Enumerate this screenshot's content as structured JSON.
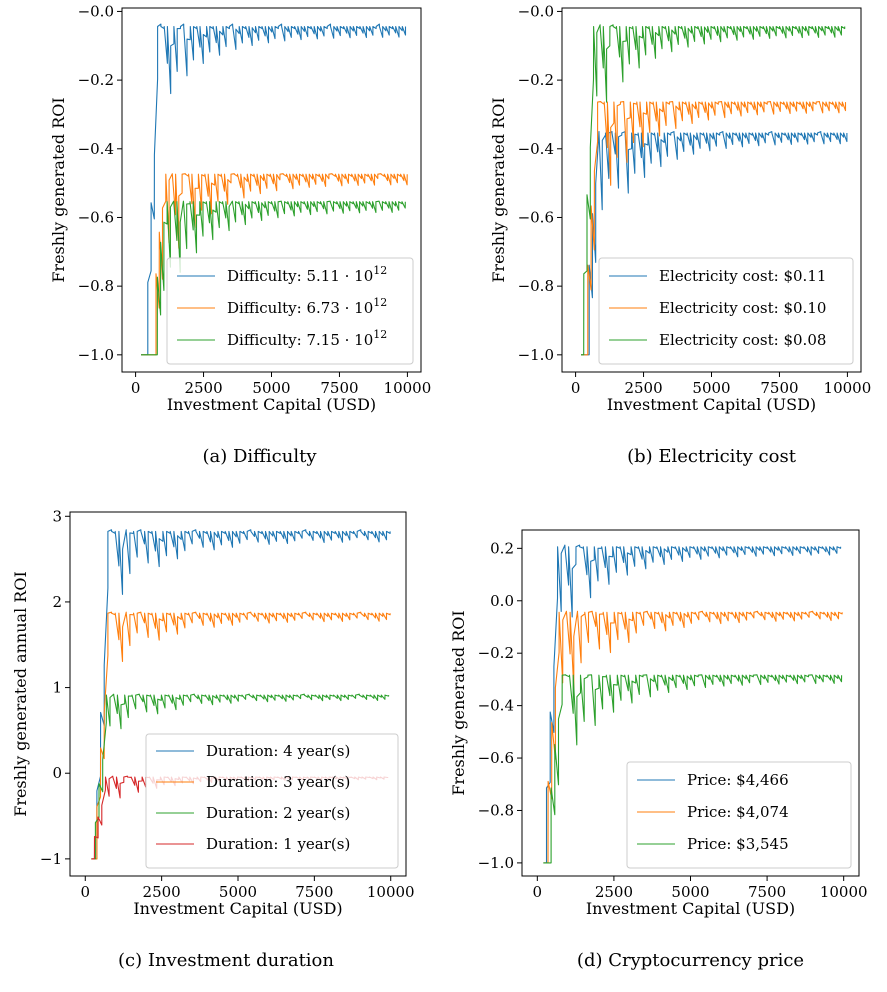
{
  "chart_data": [
    {
      "type": "line",
      "caption": "(a) Difficulty",
      "xlabel": "Investment Capital (USD)",
      "ylabel": "Freshly generated ROI",
      "xlim": [
        -500,
        10500
      ],
      "ylim": [
        -1.05,
        0.01
      ],
      "xticks": [
        0,
        2500,
        5000,
        7500,
        10000
      ],
      "yticks": [
        -1.0,
        -0.8,
        -0.6,
        -0.4,
        -0.2,
        -0.0
      ],
      "ytick_labels": [
        "−1.0",
        "−0.8",
        "−0.6",
        "−0.4",
        "−0.2",
        "−0.0"
      ],
      "legend_position": "lower-right",
      "series": [
        {
          "name": "Difficulty: 5.11 · 10^12",
          "label_base": "Difficulty: 5.11 · 10",
          "label_exp": "12",
          "color": "#1f77b4",
          "start_x": 450,
          "asymptote": -0.05,
          "amplitude": 0.26,
          "dip_depth": 0.35,
          "tooth_depth": 0.03
        },
        {
          "name": "Difficulty: 6.73 · 10^12",
          "label_base": "Difficulty: 6.73 · 10",
          "label_exp": "12",
          "color": "#ff7f0e",
          "start_x": 750,
          "asymptote": -0.48,
          "amplitude": 0.15,
          "dip_depth": 0.4,
          "tooth_depth": 0.03
        },
        {
          "name": "Difficulty: 7.15 · 10^12",
          "label_base": "Difficulty: 7.15 · 10",
          "label_exp": "12",
          "color": "#2ca02c",
          "start_x": 800,
          "asymptote": -0.56,
          "amplitude": 0.15,
          "dip_depth": 0.38,
          "tooth_depth": 0.03
        }
      ]
    },
    {
      "type": "line",
      "caption": "(b) Electricity cost",
      "xlabel": "Investment Capital (USD)",
      "ylabel": "Freshly generated ROI",
      "xlim": [
        -500,
        10500
      ],
      "ylim": [
        -1.05,
        0.01
      ],
      "xticks": [
        0,
        2500,
        5000,
        7500,
        10000
      ],
      "yticks": [
        -1.0,
        -0.8,
        -0.6,
        -0.4,
        -0.2,
        -0.0
      ],
      "ytick_labels": [
        "−1.0",
        "−0.8",
        "−0.6",
        "−0.4",
        "−0.2",
        "−0.0"
      ],
      "legend_position": "lower-right",
      "series": [
        {
          "name": "Electricity cost: $0.11",
          "label_base": "Electricity cost: $0.11",
          "label_exp": "",
          "color": "#1f77b4",
          "start_x": 500,
          "asymptote": -0.36,
          "amplitude": 0.2,
          "dip_depth": 0.45,
          "tooth_depth": 0.03
        },
        {
          "name": "Electricity cost: $0.10",
          "label_base": "Electricity cost: $0.10",
          "label_exp": "",
          "color": "#ff7f0e",
          "start_x": 450,
          "asymptote": -0.27,
          "amplitude": 0.15,
          "dip_depth": 0.45,
          "tooth_depth": 0.03
        },
        {
          "name": "Electricity cost: $0.08",
          "label_base": "Electricity cost: $0.08",
          "label_exp": "",
          "color": "#2ca02c",
          "start_x": 300,
          "asymptote": -0.05,
          "amplitude": 0.22,
          "dip_depth": 0.4,
          "tooth_depth": 0.03
        }
      ]
    },
    {
      "type": "line",
      "caption": "(c) Investment duration",
      "xlabel": "Investment Capital (USD)",
      "ylabel": "Freshly generated annual ROI",
      "xlim": [
        -500,
        10500
      ],
      "ylim": [
        -1.2,
        3.05
      ],
      "xticks": [
        0,
        2500,
        5000,
        7500,
        10000
      ],
      "yticks": [
        -1,
        0,
        1,
        2,
        3
      ],
      "ytick_labels": [
        "−1",
        "0",
        "1",
        "2",
        "3"
      ],
      "legend_position": "lower-right",
      "series": [
        {
          "name": "Duration: 4 year(s)",
          "label_base": "Duration: 4 year(s)",
          "label_exp": "",
          "color": "#1f77b4",
          "start_x": 380,
          "asymptote": 2.8,
          "amplitude": 0.85,
          "dip_depth": 1.3,
          "tooth_depth": 0.12
        },
        {
          "name": "Duration: 3 year(s)",
          "label_base": "Duration: 3 year(s)",
          "label_exp": "",
          "color": "#ff7f0e",
          "start_x": 380,
          "asymptote": 1.85,
          "amplitude": 0.6,
          "dip_depth": 1.0,
          "tooth_depth": 0.09
        },
        {
          "name": "Duration: 2 year(s)",
          "label_base": "Duration: 2 year(s)",
          "label_exp": "",
          "color": "#2ca02c",
          "start_x": 330,
          "asymptote": 0.9,
          "amplitude": 0.45,
          "dip_depth": 0.7,
          "tooth_depth": 0.06
        },
        {
          "name": "Duration: 1 year(s)",
          "label_base": "Duration: 1 year(s)",
          "label_exp": "",
          "color": "#d62728",
          "start_x": 300,
          "asymptote": -0.05,
          "amplitude": 0.3,
          "dip_depth": 0.45,
          "tooth_depth": 0.03
        }
      ]
    },
    {
      "type": "line",
      "caption": "(d) Cryptocurrency price",
      "xlabel": "Investment Capital (USD)",
      "ylabel": "Freshly generated ROI",
      "xlim": [
        -500,
        10500
      ],
      "ylim": [
        -1.05,
        0.27
      ],
      "xticks": [
        0,
        2500,
        5000,
        7500,
        10000
      ],
      "yticks": [
        -1.0,
        -0.8,
        -0.6,
        -0.4,
        -0.2,
        0.0,
        0.2
      ],
      "ytick_labels": [
        "−1.0",
        "−0.8",
        "−0.6",
        "−0.4",
        "−0.2",
        "0.0",
        "0.2"
      ],
      "legend_position": "lower-right",
      "series": [
        {
          "name": "Price: $4,466",
          "label_base": "Price: $4,466",
          "label_exp": "",
          "color": "#1f77b4",
          "start_x": 300,
          "asymptote": 0.2,
          "amplitude": 0.25,
          "dip_depth": 0.5,
          "tooth_depth": 0.03
        },
        {
          "name": "Price: $4,074",
          "label_base": "Price: $4,074",
          "label_exp": "",
          "color": "#ff7f0e",
          "start_x": 350,
          "asymptote": -0.05,
          "amplitude": 0.2,
          "dip_depth": 0.55,
          "tooth_depth": 0.03
        },
        {
          "name": "Price: $3,545",
          "label_base": "Price: $3,545",
          "label_exp": "",
          "color": "#2ca02c",
          "start_x": 450,
          "asymptote": -0.29,
          "amplitude": 0.15,
          "dip_depth": 0.5,
          "tooth_depth": 0.03
        }
      ]
    }
  ]
}
